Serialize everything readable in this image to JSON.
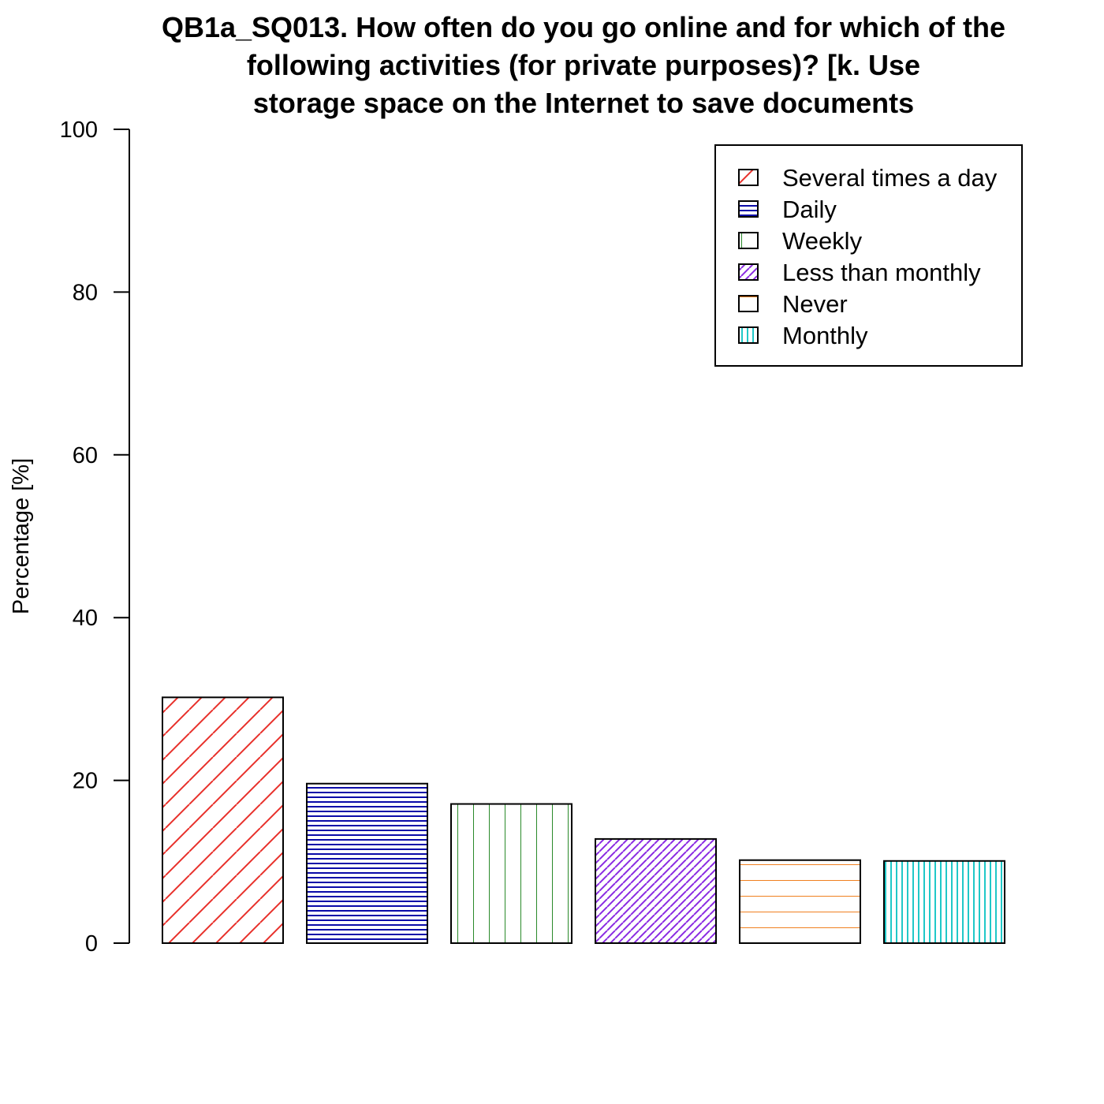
{
  "chart_data": {
    "type": "bar",
    "title_lines": [
      "QB1a_SQ013. How often do you go online and for which of the",
      "following activities (for private purposes)? [k. Use",
      "storage space on the Internet to save documents"
    ],
    "xlabel": "",
    "ylabel": "Percentage [%]",
    "ylim": [
      0,
      100
    ],
    "yticks": [
      0,
      20,
      40,
      60,
      80,
      100
    ],
    "grid": false,
    "legend_position": "top-right",
    "categories": [
      "Several times a day",
      "Daily",
      "Weekly",
      "Less than monthly",
      "Never",
      "Monthly"
    ],
    "values": [
      30.2,
      19.6,
      17.1,
      12.8,
      10.2,
      10.1
    ],
    "series_styles": [
      {
        "color": "#e8302a",
        "pattern": "diagonal-wide"
      },
      {
        "color": "#0a0aa8",
        "pattern": "horizontal-dense"
      },
      {
        "color": "#2a8a2a",
        "pattern": "vertical-wide"
      },
      {
        "color": "#8a2be2",
        "pattern": "diagonal-dense"
      },
      {
        "color": "#f08020",
        "pattern": "horizontal-wide"
      },
      {
        "color": "#20c8c8",
        "pattern": "vertical-dense"
      }
    ]
  }
}
